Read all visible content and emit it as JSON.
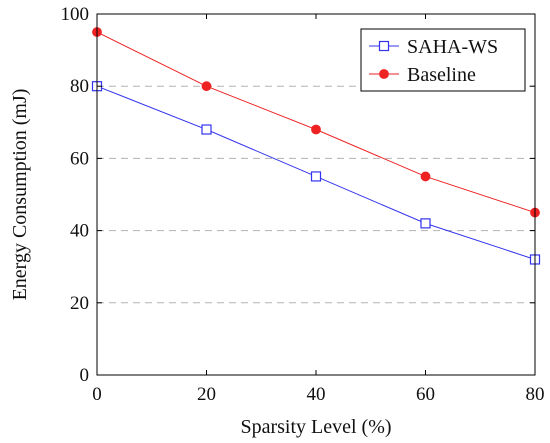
{
  "chart_data": {
    "type": "line",
    "title": "",
    "xlabel": "Sparsity Level (%)",
    "ylabel": "Energy Consumption (mJ)",
    "x": [
      0,
      20,
      40,
      60,
      80
    ],
    "xlim": [
      0,
      80
    ],
    "ylim": [
      0,
      100
    ],
    "xticks": [
      0,
      20,
      40,
      60,
      80
    ],
    "yticks": [
      0,
      20,
      40,
      60,
      80,
      100
    ],
    "grid": "horizontal-dashed",
    "legend_position": "top-right",
    "series": [
      {
        "name": "SAHA-WS",
        "values": [
          80,
          68,
          55,
          42,
          32
        ],
        "color": "#3333ee",
        "marker": "square-open"
      },
      {
        "name": "Baseline",
        "values": [
          95,
          80,
          68,
          55,
          45
        ],
        "color": "#ee2222",
        "marker": "circle-filled"
      }
    ]
  }
}
